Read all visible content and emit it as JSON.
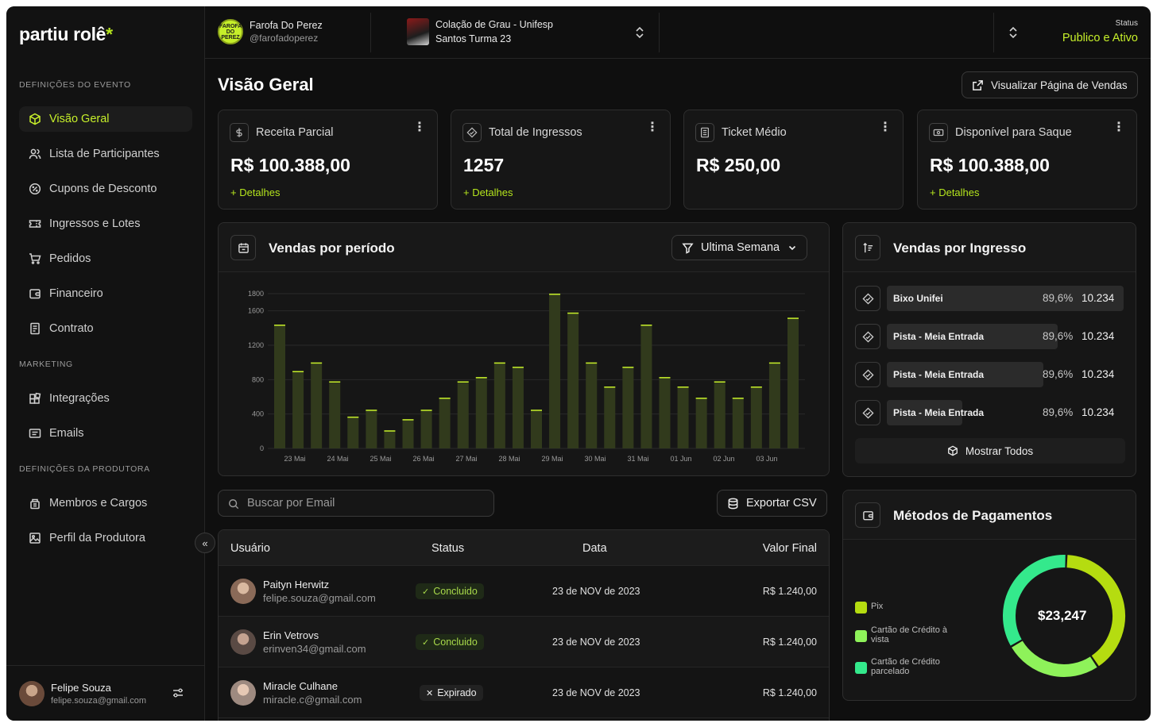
{
  "brand": {
    "name": "partiu rolê",
    "mark": "*"
  },
  "sidebar": {
    "sections": [
      {
        "label": "DEFINIÇÕES DO EVENTO"
      },
      {
        "label": "MARKETING"
      },
      {
        "label": "DEFINIÇÕES DA PRODUTORA"
      }
    ],
    "items": [
      {
        "label": "Visão Geral",
        "icon": "cube-icon",
        "active": true
      },
      {
        "label": "Lista de Participantes",
        "icon": "users-icon"
      },
      {
        "label": "Cupons de Desconto",
        "icon": "discount-icon"
      },
      {
        "label": "Ingressos e Lotes",
        "icon": "ticket-icon"
      },
      {
        "label": "Pedidos",
        "icon": "cart-icon"
      },
      {
        "label": "Financeiro",
        "icon": "wallet-icon"
      },
      {
        "label": "Contrato",
        "icon": "document-icon"
      },
      {
        "label": "Integrações",
        "icon": "integrations-icon"
      },
      {
        "label": "Emails",
        "icon": "mail-icon"
      },
      {
        "label": "Membros e Cargos",
        "icon": "members-icon"
      },
      {
        "label": "Perfil da Produtora",
        "icon": "image-icon"
      }
    ],
    "collapse_icon": "«",
    "user": {
      "name": "Felipe Souza",
      "email": "felipe.souza@gmail.com"
    }
  },
  "topbar": {
    "producer": {
      "name": "Farofa Do Perez",
      "handle": "@farofadoperez",
      "logo_text": "FAROFA DO PEREZ"
    },
    "event": {
      "title": "Colação de Grau - Unifesp",
      "subtitle": "Santos Turma 23"
    },
    "status": {
      "label": "Status",
      "value": "Publico e Ativo"
    }
  },
  "page": {
    "title": "Visão Geral",
    "view_sales_label": "Visualizar Página de Vendas"
  },
  "kpis": [
    {
      "label": "Receita Parcial",
      "value": "R$ 100.388,00",
      "link": "+ Detalhes",
      "icon": "dollar-icon"
    },
    {
      "label": "Total de Ingressos",
      "value": "1257",
      "link": "+ Detalhes",
      "icon": "ticket-icon"
    },
    {
      "label": "Ticket Médio",
      "value": "R$ 250,00",
      "link": "",
      "icon": "receipt-icon"
    },
    {
      "label": "Disponível para Saque",
      "value": "R$ 100.388,00",
      "link": "+ Detalhes",
      "icon": "cash-icon"
    }
  ],
  "sales_period": {
    "title": "Vendas por período",
    "filter_label": "Ultima Semana"
  },
  "chart_data": {
    "type": "bar",
    "title": "Vendas por período",
    "ylim": [
      0,
      1800
    ],
    "yticks": [
      0,
      400,
      800,
      1200,
      1600,
      1800
    ],
    "xtick_labels": [
      "23 Mai",
      "24 Mai",
      "25 Mai",
      "26 Mai",
      "27 Mai",
      "28 Mai",
      "29 Mai",
      "30 Mai",
      "31 Mai",
      "01 Jun",
      "02 Jun",
      "03 Jun"
    ],
    "values": [
      1440,
      900,
      1000,
      780,
      370,
      450,
      210,
      340,
      450,
      590,
      780,
      830,
      1000,
      950,
      450,
      1800,
      1580,
      1000,
      720,
      950,
      1440,
      830,
      720,
      590,
      780,
      590,
      720,
      1000,
      1520
    ],
    "grid": true,
    "bar_color": "#313a1c",
    "bar_top_color": "#c6ef2a"
  },
  "ticket_sales": {
    "title": "Vendas por Ingresso",
    "rows": [
      {
        "name": "Bixo Unifei",
        "pct": "89,6%",
        "qty": "10.234",
        "share": 1.0
      },
      {
        "name": "Pista - Meia Entrada",
        "pct": "89,6%",
        "qty": "10.234",
        "share": 0.72
      },
      {
        "name": "Pista - Meia Entrada",
        "pct": "89,6%",
        "qty": "10.234",
        "share": 0.66
      },
      {
        "name": "Pista - Meia Entrada",
        "pct": "89,6%",
        "qty": "10.234",
        "share": 0.32
      }
    ],
    "show_all_label": "Mostrar Todos"
  },
  "search": {
    "placeholder": "Buscar por Email"
  },
  "export_label": "Exportar CSV",
  "table": {
    "headers": {
      "user": "Usuário",
      "status": "Status",
      "date": "Data",
      "value": "Valor Final"
    },
    "rows": [
      {
        "name": "Paityn Herwitz",
        "email": "felipe.souza@gmail.com",
        "status": "Concluido",
        "status_type": "ok",
        "date": "23 de NOV de 2023",
        "value": "R$ 1.240,00"
      },
      {
        "name": "Erin Vetrovs",
        "email": "erinven34@gmail.com",
        "status": "Concluido",
        "status_type": "ok",
        "date": "23 de NOV de 2023",
        "value": "R$ 1.240,00"
      },
      {
        "name": "Miracle Culhane",
        "email": "miracle.c@gmail.com",
        "status": "Expirado",
        "status_type": "expired",
        "date": "23 de NOV de 2023",
        "value": "R$ 1.240,00"
      }
    ]
  },
  "payments": {
    "title": "Métodos de Pagamentos",
    "total": "$23,247",
    "methods": [
      {
        "label": "Pix",
        "color": "#b5dc10",
        "share": 0.4
      },
      {
        "label": "Cartão de Crédito à vista",
        "color": "#8ef25a",
        "share": 0.26
      },
      {
        "label": "Cartão de Crédito parcelado",
        "color": "#34e98c",
        "share": 0.34
      }
    ]
  }
}
